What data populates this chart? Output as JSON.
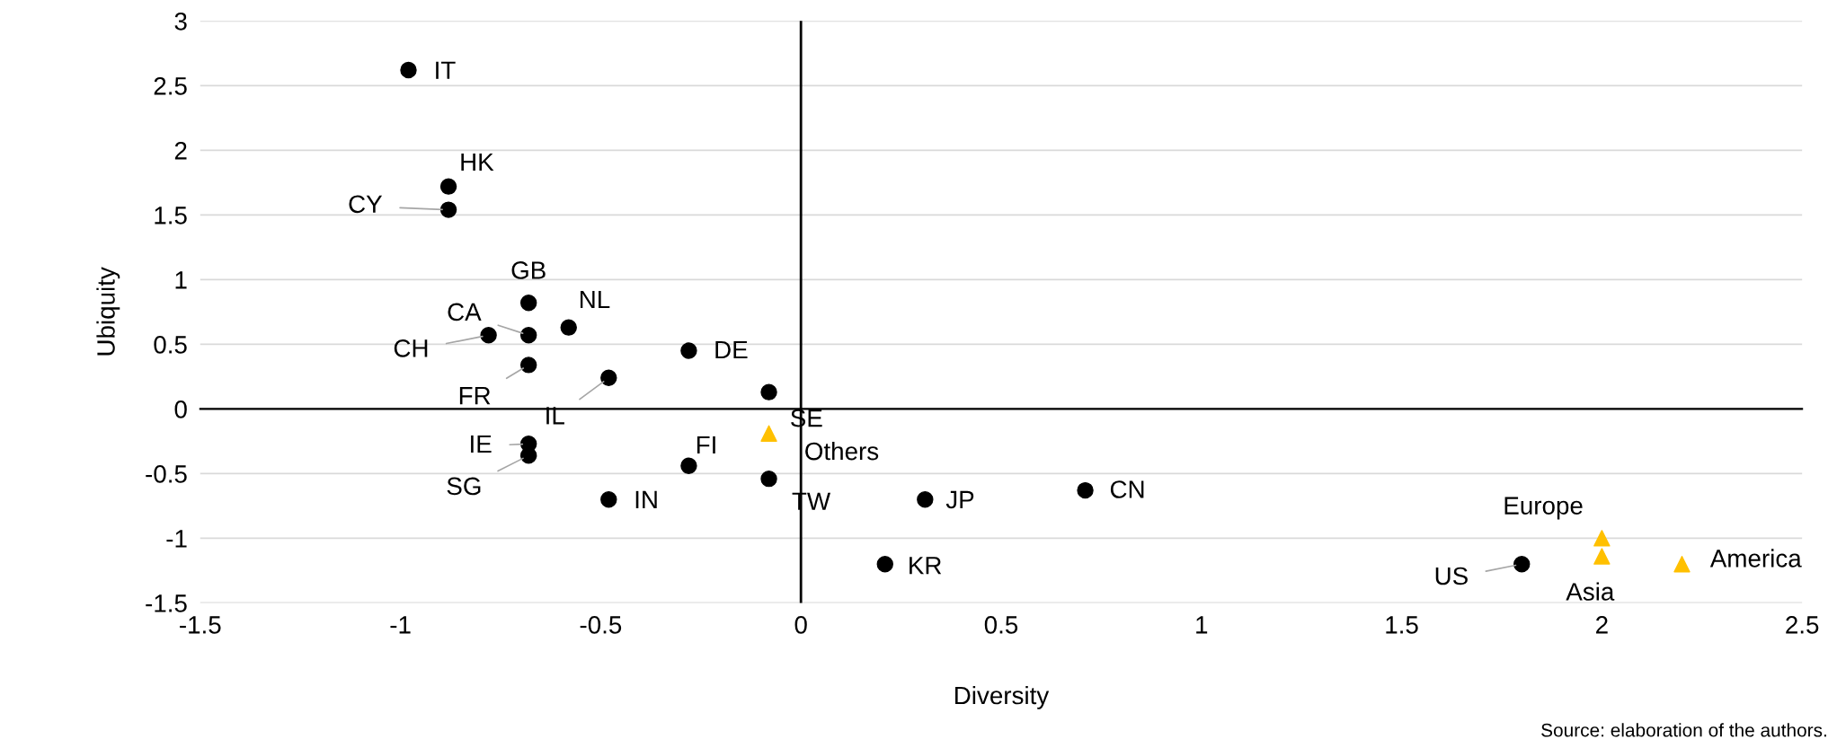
{
  "chart_data": {
    "type": "scatter",
    "xlabel": "Diversity",
    "ylabel": "Ubiquity",
    "xlim": [
      -1.5,
      2.5
    ],
    "xticks": [
      -1.5,
      -1,
      -0.5,
      0,
      0.5,
      1,
      1.5,
      2,
      2.5
    ],
    "ylim": [
      -1.5,
      3
    ],
    "yticks": [
      -1.5,
      -1,
      -0.5,
      0,
      0.5,
      1,
      1.5,
      2,
      2.5,
      3
    ],
    "grid": "y",
    "legend": false,
    "ref_lines": [
      {
        "axis": "x",
        "value": 0,
        "color": "#000000"
      }
    ],
    "series": [
      {
        "color": "#000000",
        "marker": "circle",
        "x": [
          -0.98,
          -0.88,
          -0.88,
          -0.68,
          -0.58,
          -0.68,
          -0.78,
          -0.28,
          -0.68,
          -0.48,
          -0.08,
          -0.68,
          -0.68,
          -0.28,
          -0.08,
          -0.48,
          0.31,
          0.71,
          0.21,
          1.8
        ],
        "values": [
          2.62,
          1.72,
          1.54,
          0.82,
          0.63,
          0.57,
          0.57,
          0.45,
          0.34,
          0.24,
          0.13,
          -0.27,
          -0.36,
          -0.44,
          -0.54,
          -0.7,
          -0.7,
          -0.63,
          -1.2,
          -1.2
        ]
      },
      {
        "color": "#ffc000",
        "marker": "triangle",
        "x": [
          -0.08,
          2.0,
          2.0,
          2.2
        ],
        "values": [
          -0.19,
          -1.0,
          -1.14,
          -1.2
        ]
      }
    ],
    "annotations": [
      {
        "text": "IT",
        "x": -0.98,
        "y": 2.62
      },
      {
        "text": "HK",
        "x": -0.88,
        "y": 1.72
      },
      {
        "text": "CY",
        "x": -0.88,
        "y": 1.54
      },
      {
        "text": "GB",
        "x": -0.68,
        "y": 0.82
      },
      {
        "text": "NL",
        "x": -0.58,
        "y": 0.63
      },
      {
        "text": "CA",
        "x": -0.68,
        "y": 0.57
      },
      {
        "text": "CH",
        "x": -0.78,
        "y": 0.57
      },
      {
        "text": "DE",
        "x": -0.28,
        "y": 0.45
      },
      {
        "text": "FR",
        "x": -0.68,
        "y": 0.34
      },
      {
        "text": "IL",
        "x": -0.48,
        "y": 0.24
      },
      {
        "text": "SE",
        "x": -0.08,
        "y": 0.13
      },
      {
        "text": "Others",
        "x": -0.08,
        "y": -0.19
      },
      {
        "text": "IE",
        "x": -0.68,
        "y": -0.27
      },
      {
        "text": "SG",
        "x": -0.68,
        "y": -0.36
      },
      {
        "text": "FI",
        "x": -0.28,
        "y": -0.44
      },
      {
        "text": "TW",
        "x": -0.08,
        "y": -0.54
      },
      {
        "text": "IN",
        "x": -0.48,
        "y": -0.7
      },
      {
        "text": "JP",
        "x": 0.31,
        "y": -0.7
      },
      {
        "text": "CN",
        "x": 0.71,
        "y": -0.63
      },
      {
        "text": "KR",
        "x": 0.21,
        "y": -1.2
      },
      {
        "text": "US",
        "x": 1.8,
        "y": -1.2
      },
      {
        "text": "Europe",
        "x": 2.0,
        "y": -1.0
      },
      {
        "text": "Asia",
        "x": 2.0,
        "y": -1.14
      },
      {
        "text": "America",
        "x": 2.2,
        "y": -1.2
      },
      "Source: elaboration of the authors."
    ]
  }
}
